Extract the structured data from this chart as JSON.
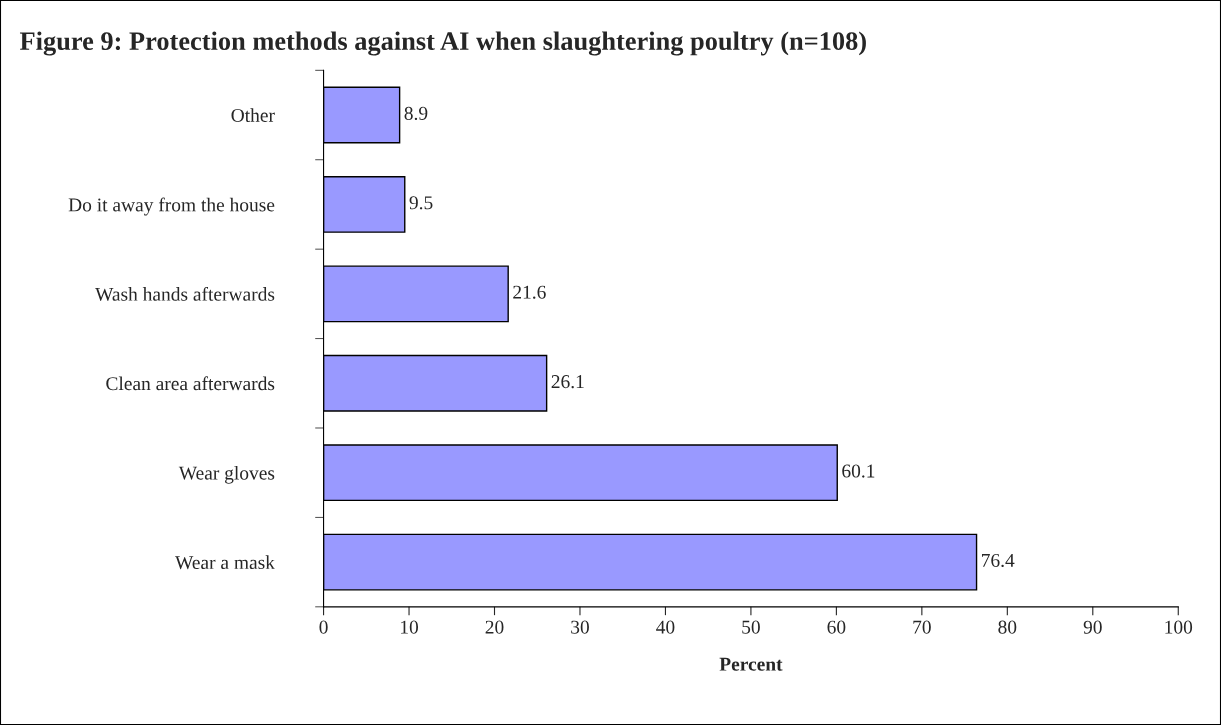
{
  "chart_data": {
    "type": "bar",
    "orientation": "horizontal",
    "title": "Figure 9: Protection methods against AI when slaughtering poultry (n=108)",
    "xlabel": "Percent",
    "categories": [
      "Other",
      "Do it away from the house",
      "Wash hands afterwards",
      "Clean area afterwards",
      "Wear gloves",
      "Wear a mask"
    ],
    "values": [
      8.9,
      9.5,
      21.6,
      26.1,
      60.1,
      76.4
    ],
    "color": "#9999ff",
    "xlim": [
      0,
      100
    ],
    "xticks": [
      0,
      10,
      20,
      30,
      40,
      50,
      60,
      70,
      80,
      90,
      100
    ],
    "data_labels": true,
    "grid": false,
    "legend": false
  }
}
